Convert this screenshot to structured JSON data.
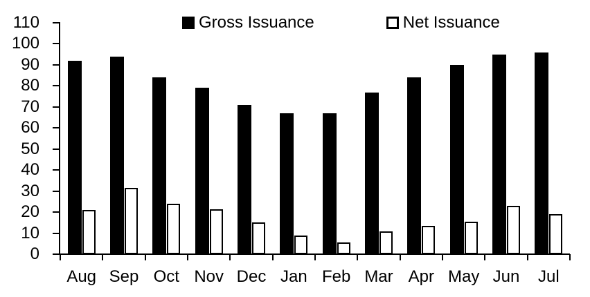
{
  "legend": {
    "gross_label": "Gross Issuance",
    "net_label": "Net Issuance"
  },
  "chart_data": {
    "type": "bar",
    "title": "",
    "xlabel": "",
    "ylabel": "",
    "categories": [
      "Aug",
      "Sep",
      "Oct",
      "Nov",
      "Dec",
      "Jan",
      "Feb",
      "Mar",
      "Apr",
      "May",
      "Jun",
      "Jul"
    ],
    "series": [
      {
        "name": "Gross Issuance",
        "style": "solid",
        "fill_color": "#000000",
        "values": [
          92,
          94,
          84,
          79,
          71,
          67,
          67,
          77,
          84,
          90,
          95,
          96
        ]
      },
      {
        "name": "Net Issuance",
        "style": "outline",
        "fill_color": "#ffffff",
        "border_color": "#000000",
        "values": [
          21,
          31.5,
          24,
          21.5,
          15,
          9,
          5.5,
          11,
          13.5,
          15.5,
          23,
          19
        ]
      }
    ],
    "ylim": [
      0,
      110
    ],
    "yticks": [
      0,
      10,
      20,
      30,
      40,
      50,
      60,
      70,
      80,
      90,
      100,
      110
    ],
    "grid": false,
    "legend_position": "top",
    "axis_color": "#000000",
    "background_color": "#ffffff",
    "text_color": "#000000"
  }
}
